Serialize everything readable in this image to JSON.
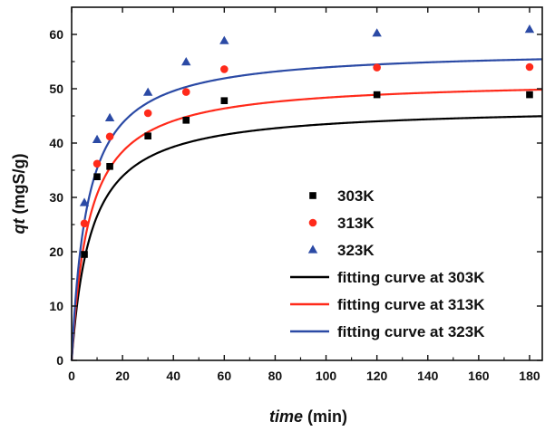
{
  "chart_data": {
    "type": "scatter",
    "xlabel_parts": {
      "var": "time",
      "unit": " (min)"
    },
    "ylabel_parts": {
      "var": "qt",
      "unit": " (mgS/g)"
    },
    "xlim": [
      0,
      185
    ],
    "ylim": [
      0,
      65
    ],
    "xticks": [
      0,
      20,
      40,
      60,
      80,
      100,
      120,
      140,
      160,
      180
    ],
    "yticks": [
      0,
      10,
      20,
      30,
      40,
      50,
      60
    ],
    "grid": false,
    "legend_position": "bottom-right",
    "scatter_series": [
      {
        "name": "303K",
        "color": "#000000",
        "marker": "square",
        "points": [
          [
            5,
            19.5
          ],
          [
            10,
            33.8
          ],
          [
            15,
            35.7
          ],
          [
            30,
            41.3
          ],
          [
            45,
            44.2
          ],
          [
            60,
            47.8
          ],
          [
            120,
            48.9
          ],
          [
            180,
            48.9
          ]
        ]
      },
      {
        "name": "313K",
        "color": "#ff2a1a",
        "marker": "circle",
        "points": [
          [
            5,
            25.2
          ],
          [
            10,
            36.2
          ],
          [
            15,
            41.2
          ],
          [
            30,
            45.5
          ],
          [
            45,
            49.4
          ],
          [
            60,
            53.6
          ],
          [
            120,
            53.9
          ],
          [
            180,
            54.0
          ]
        ]
      },
      {
        "name": "323K",
        "color": "#2b4aa5",
        "marker": "triangle",
        "points": [
          [
            5,
            29.0
          ],
          [
            10,
            40.6
          ],
          [
            15,
            44.6
          ],
          [
            30,
            49.3
          ],
          [
            45,
            54.9
          ],
          [
            60,
            58.8
          ],
          [
            120,
            60.2
          ],
          [
            180,
            60.9
          ]
        ]
      }
    ],
    "fit_series": [
      {
        "name": "fitting curve at 303K",
        "color": "#000000",
        "qe": 46.8,
        "k": 0.0028
      },
      {
        "name": "fitting curve at 313K",
        "color": "#ff2a1a",
        "qe": 51.7,
        "k": 0.0028
      },
      {
        "name": "fitting curve at 323K",
        "color": "#2b4aa5",
        "qe": 57.3,
        "k": 0.0028
      }
    ]
  }
}
